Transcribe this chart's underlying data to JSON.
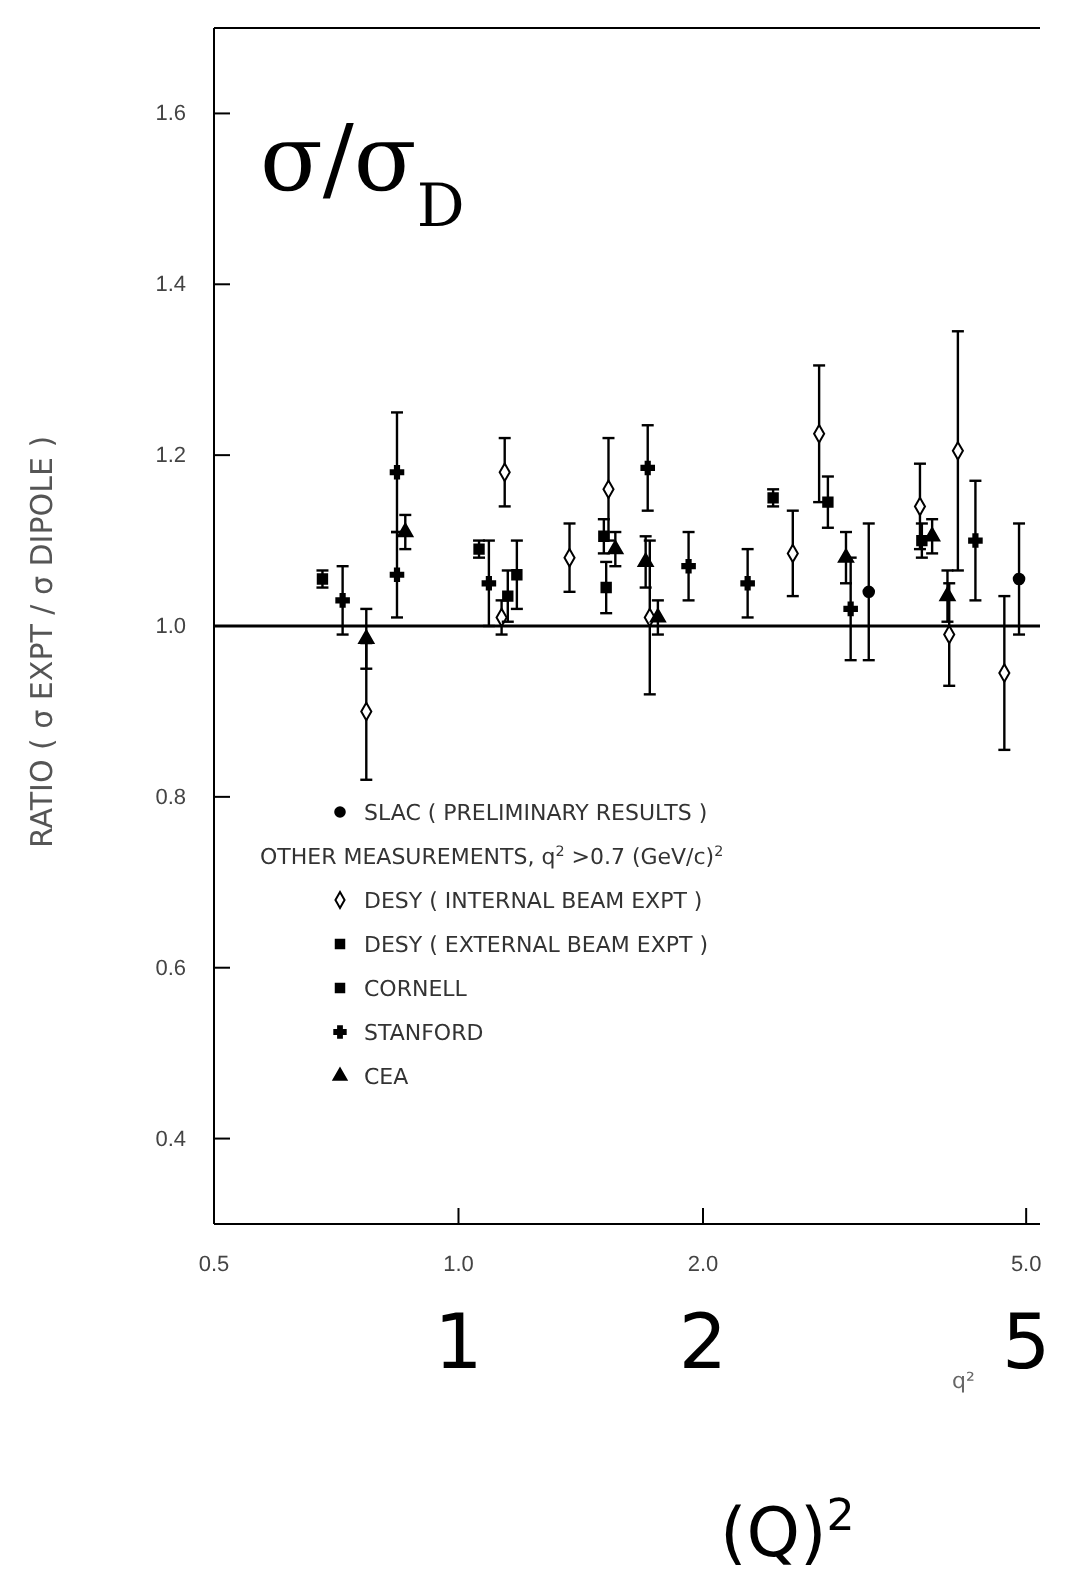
{
  "chart_data": {
    "type": "scatter",
    "ylabel": "RATIO ( σ EXPT / σ DIPOLE )",
    "xlabel": "q²",
    "annotations": [
      "σ/σ$_{D}$",
      "1",
      "2",
      "5",
      "(Q)$^{2}$",
      "OTHER MEASUREMENTS, q$^{2}$ >0.7 (GeV/c)$^{2}$"
    ],
    "log": "x",
    "xlim": [
      0.5,
      5.2
    ],
    "xticks": [
      {
        "value": 0.5,
        "label": "0.5"
      },
      {
        "value": 1,
        "label": "1.0"
      },
      {
        "value": 2,
        "label": "2.0"
      },
      {
        "value": 5,
        "label": "5.0"
      }
    ],
    "ylim": [
      0.3,
      1.7
    ],
    "yticks": [
      0.4,
      0.6,
      0.8,
      {
        "value": 1,
        "label": "1.0"
      },
      1.2,
      1.4,
      1.6
    ],
    "ref_lines": [
      {
        "axis": "y",
        "value": 1.0,
        "color": "#000000"
      }
    ],
    "legend": "bottom left",
    "grid": false,
    "series": [
      {
        "name": "SLAC ( PRELIMINARY RESULTS )",
        "color": "#000000",
        "marker": "circle",
        "x": [
          3.2,
          4.9
        ],
        "values": [
          1.04,
          1.055
        ],
        "errors": [
          0.08,
          0.065
        ]
      },
      {
        "name": "DESY ( INTERNAL BEAM EXPT )",
        "color": "#000000",
        "marker": "diamond",
        "x": [
          0.77,
          1.13,
          1.14,
          1.37,
          1.53,
          1.72,
          2.58,
          2.78,
          3.7,
          4.02,
          4.12,
          4.7
        ],
        "values": [
          0.9,
          1.01,
          1.18,
          1.08,
          1.16,
          1.01,
          1.085,
          1.225,
          1.14,
          0.99,
          1.205,
          0.945
        ],
        "errors": [
          0.08,
          0.02,
          0.04,
          0.04,
          0.06,
          0.09,
          0.05,
          0.08,
          0.05,
          0.06,
          0.14,
          0.09
        ]
      },
      {
        "name": "DESY ( EXTERNAL BEAM EXPT )",
        "color": "#000000",
        "marker": "square",
        "x": [
          0.68,
          1.06,
          1.15,
          1.51,
          1.52,
          2.44,
          2.85,
          3.72
        ],
        "values": [
          1.055,
          1.09,
          1.035,
          1.105,
          1.045,
          1.15,
          1.145,
          1.1
        ],
        "errors": [
          0.01,
          0.01,
          0.03,
          0.02,
          0.03,
          0.01,
          0.03,
          0.02
        ]
      },
      {
        "name": "CORNELL",
        "color": "#000000",
        "marker": "square",
        "x": [
          1.18
        ],
        "values": [
          1.06
        ],
        "errors": [
          0.04
        ]
      },
      {
        "name": "STANFORD",
        "color": "#000000",
        "marker": "cross",
        "x": [
          0.72,
          0.84,
          0.84,
          1.09,
          1.71,
          1.92,
          2.27,
          3.04,
          4.33
        ],
        "values": [
          1.03,
          1.18,
          1.06,
          1.05,
          1.185,
          1.07,
          1.05,
          1.02,
          1.1
        ],
        "errors": [
          0.04,
          0.07,
          0.05,
          0.05,
          0.05,
          0.04,
          0.04,
          0.06,
          0.07
        ]
      },
      {
        "name": "CEA",
        "color": "#000000",
        "marker": "triangle",
        "x": [
          0.77,
          0.86,
          1.56,
          1.7,
          1.76,
          3.0,
          3.83,
          4.0
        ],
        "values": [
          0.985,
          1.11,
          1.09,
          1.075,
          1.01,
          1.08,
          1.105,
          1.035
        ],
        "errors": [
          0.035,
          0.02,
          0.02,
          0.03,
          0.02,
          0.03,
          0.02,
          0.03
        ]
      }
    ]
  }
}
